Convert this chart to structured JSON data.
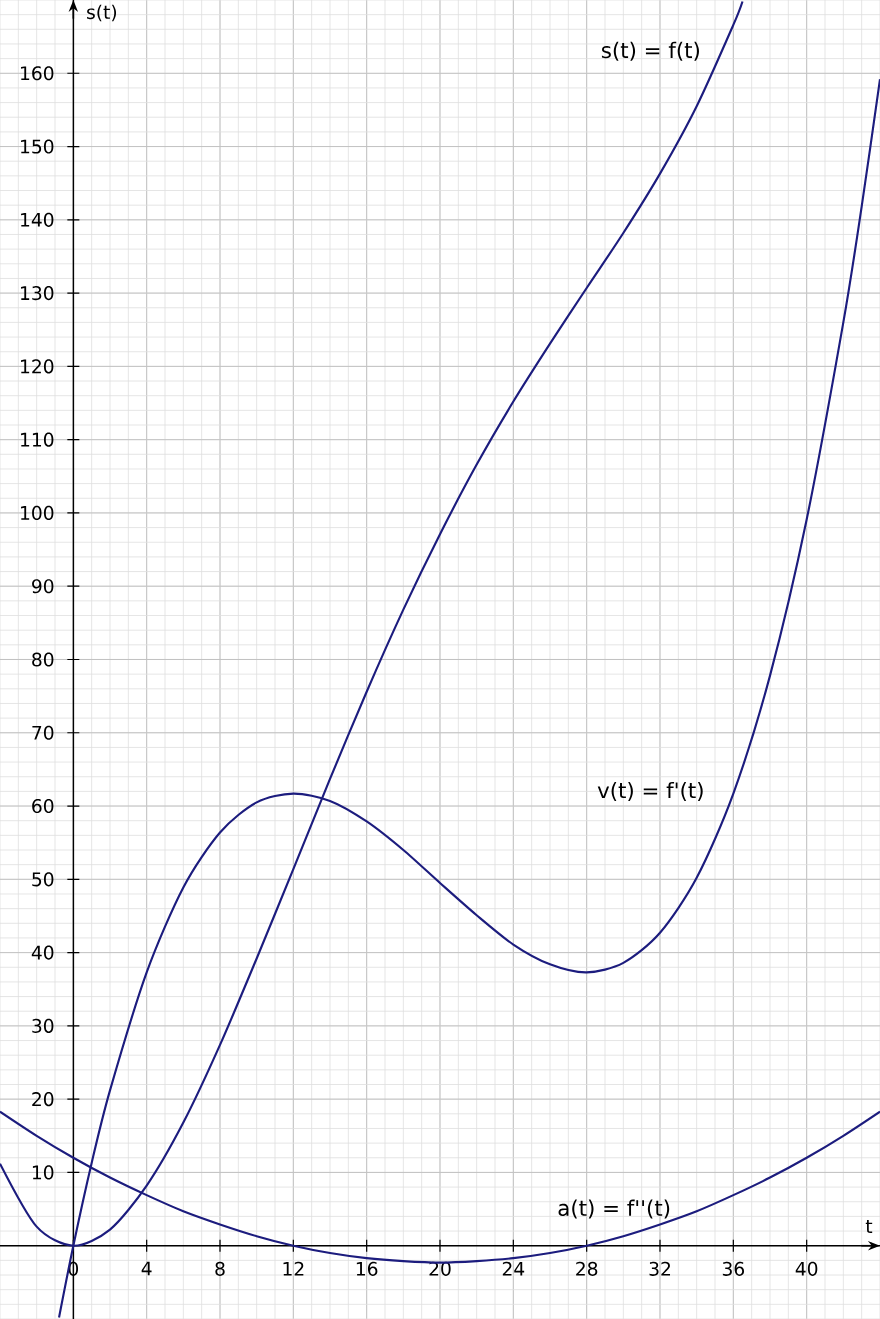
{
  "chart_data": {
    "type": "line",
    "xlabel": "t",
    "ylabel": "s(t)",
    "xlim": [
      -4,
      44
    ],
    "ylim": [
      -10,
      170
    ],
    "xticks": [
      0,
      4,
      8,
      12,
      16,
      20,
      24,
      28,
      32,
      36,
      40
    ],
    "yticks": [
      10,
      20,
      30,
      40,
      50,
      60,
      70,
      80,
      90,
      100,
      110,
      120,
      130,
      140,
      150,
      160
    ],
    "grid": true,
    "series": [
      {
        "name": "s(t) = f(t)",
        "color": "#1c1c7e",
        "x": [
          -4,
          -2,
          0,
          2,
          4,
          6,
          8,
          10,
          12,
          14,
          16,
          18,
          20,
          22,
          24,
          26,
          28,
          30,
          32,
          34,
          36,
          36.5
        ],
        "values": [
          11.2,
          2.6,
          0,
          2.2,
          8.2,
          16.8,
          27.4,
          39.2,
          51.4,
          63.7,
          75.6,
          86.8,
          97.1,
          106.6,
          115.2,
          123.1,
          130.7,
          138.2,
          146.3,
          155.5,
          166.6,
          169.8
        ]
      },
      {
        "name": "v(t) = f'(t)",
        "color": "#1c1c7e",
        "x": [
          -0.78,
          0,
          1,
          2,
          4,
          6,
          8,
          10,
          12,
          14,
          16,
          18,
          20,
          22,
          24,
          26,
          28,
          30,
          32,
          34,
          36,
          38,
          40,
          42,
          43,
          44
        ],
        "values": [
          -9.8,
          0,
          11.3,
          21.2,
          37.3,
          48.9,
          56.4,
          60.5,
          61.7,
          60.7,
          57.9,
          54.0,
          49.5,
          45.1,
          41.1,
          38.4,
          37.3,
          38.6,
          42.7,
          50.2,
          61.7,
          77.8,
          99.1,
          126.0,
          141.8,
          159.2
        ]
      },
      {
        "name": "a(t) = f''(t)",
        "color": "#1c1c7e",
        "x": [
          -4,
          -2,
          0,
          2,
          4,
          6,
          8,
          10,
          12,
          14,
          16,
          18,
          20,
          22,
          24,
          26,
          28,
          30,
          32,
          34,
          36,
          38,
          40,
          42,
          44
        ],
        "values": [
          18.3,
          15.0,
          12.0,
          9.3,
          6.9,
          4.7,
          2.9,
          1.3,
          0,
          -1.0,
          -1.7,
          -2.1,
          -2.3,
          -2.1,
          -1.7,
          -1.0,
          0,
          1.3,
          2.9,
          4.7,
          6.9,
          9.3,
          12.0,
          15.0,
          18.3
        ]
      }
    ]
  }
}
